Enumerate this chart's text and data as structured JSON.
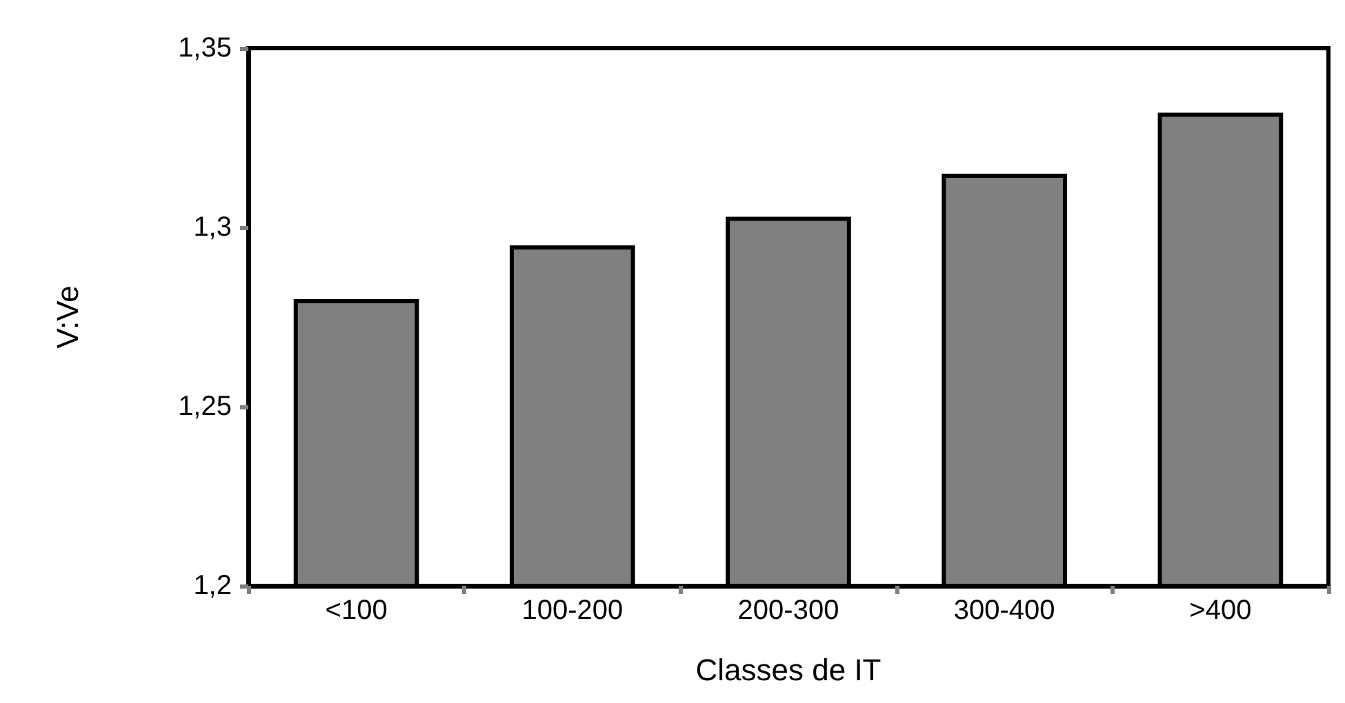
{
  "chart_data": {
    "type": "bar",
    "xlabel": "Classes de IT",
    "ylabel": "V:Ve",
    "categories": [
      "<100",
      "100-200",
      "200-300",
      "300-400",
      ">400"
    ],
    "values": [
      1.28,
      1.295,
      1.303,
      1.315,
      1.332
    ],
    "color": "#808080",
    "ylim": [
      1.2,
      1.35
    ],
    "yticks": [
      {
        "value": 1.2,
        "label": "1,2"
      },
      {
        "value": 1.25,
        "label": "1,25"
      },
      {
        "value": 1.3,
        "label": "1,3"
      },
      {
        "value": 1.35,
        "label": "1,35"
      }
    ],
    "grid": false
  }
}
